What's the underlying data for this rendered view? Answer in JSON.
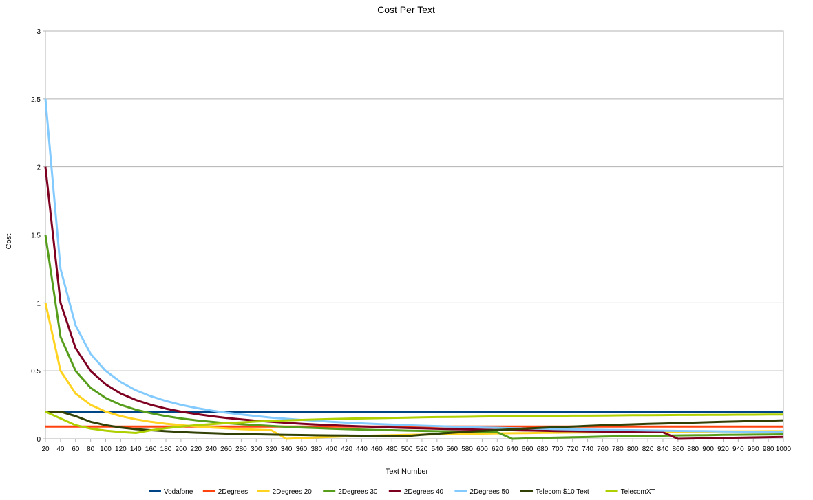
{
  "chart_data": {
    "type": "line",
    "title": "Cost Per Text",
    "xlabel": "Text Number",
    "ylabel": "Cost",
    "ylim": [
      0,
      3
    ],
    "yticks": [
      "0",
      "0.5",
      "1",
      "1.5",
      "2",
      "2.5",
      "3"
    ],
    "grid": true,
    "legend_position": "bottom",
    "x": [
      20,
      40,
      60,
      80,
      100,
      120,
      140,
      160,
      180,
      200,
      220,
      240,
      260,
      280,
      300,
      320,
      340,
      360,
      380,
      400,
      420,
      440,
      460,
      480,
      500,
      520,
      540,
      560,
      580,
      600,
      620,
      640,
      660,
      680,
      700,
      720,
      740,
      760,
      780,
      800,
      820,
      840,
      860,
      880,
      900,
      920,
      940,
      960,
      980,
      1000
    ],
    "series": [
      {
        "name": "Vodafone",
        "color": "#004586",
        "values": [
          0.2,
          0.2,
          0.2,
          0.2,
          0.2,
          0.2,
          0.2,
          0.2,
          0.2,
          0.2,
          0.2,
          0.2,
          0.2,
          0.2,
          0.2,
          0.2,
          0.2,
          0.2,
          0.2,
          0.2,
          0.2,
          0.2,
          0.2,
          0.2,
          0.2,
          0.2,
          0.2,
          0.2,
          0.2,
          0.2,
          0.2,
          0.2,
          0.2,
          0.2,
          0.2,
          0.2,
          0.2,
          0.2,
          0.2,
          0.2,
          0.2,
          0.2,
          0.2,
          0.2,
          0.2,
          0.2,
          0.2,
          0.2,
          0.2,
          0.2
        ]
      },
      {
        "name": "2Degrees",
        "color": "#ff420e",
        "values": [
          0.09,
          0.09,
          0.09,
          0.09,
          0.09,
          0.09,
          0.09,
          0.09,
          0.09,
          0.09,
          0.09,
          0.09,
          0.09,
          0.09,
          0.09,
          0.09,
          0.09,
          0.09,
          0.09,
          0.09,
          0.09,
          0.09,
          0.09,
          0.09,
          0.09,
          0.09,
          0.09,
          0.09,
          0.09,
          0.09,
          0.09,
          0.09,
          0.09,
          0.09,
          0.09,
          0.09,
          0.09,
          0.09,
          0.09,
          0.09,
          0.09,
          0.09,
          0.09,
          0.09,
          0.09,
          0.09,
          0.09,
          0.09,
          0.09,
          0.09
        ]
      },
      {
        "name": "2Degrees 20",
        "color": "#ffd320",
        "values": [
          1.0,
          0.5,
          0.333,
          0.25,
          0.2,
          0.167,
          0.143,
          0.125,
          0.111,
          0.1,
          0.091,
          0.083,
          0.077,
          0.071,
          0.067,
          0.063,
          0.0,
          0.005,
          0.01,
          0.014,
          0.018,
          0.021,
          0.024,
          0.027,
          0.029,
          0.031,
          0.033,
          0.035,
          0.037,
          0.038,
          0.04,
          0.041,
          0.042,
          0.044,
          0.045,
          0.046,
          0.047,
          0.048,
          0.049,
          0.05,
          0.05,
          0.051,
          0.052,
          0.053,
          0.053,
          0.054,
          0.055,
          0.055,
          0.056,
          0.056
        ]
      },
      {
        "name": "2Degrees 30",
        "color": "#579d1c",
        "values": [
          1.5,
          0.75,
          0.5,
          0.375,
          0.3,
          0.25,
          0.214,
          0.188,
          0.167,
          0.15,
          0.136,
          0.125,
          0.115,
          0.107,
          0.1,
          0.094,
          0.088,
          0.083,
          0.079,
          0.075,
          0.071,
          0.068,
          0.065,
          0.063,
          0.06,
          0.058,
          0.056,
          0.054,
          0.052,
          0.05,
          0.048,
          0.0,
          0.003,
          0.006,
          0.009,
          0.011,
          0.013,
          0.016,
          0.018,
          0.02,
          0.021,
          0.023,
          0.025,
          0.026,
          0.027,
          0.029,
          0.03,
          0.031,
          0.032,
          0.033
        ]
      },
      {
        "name": "2Degrees 40",
        "color": "#7e0021",
        "values": [
          2.0,
          1.0,
          0.667,
          0.5,
          0.4,
          0.333,
          0.286,
          0.25,
          0.222,
          0.2,
          0.182,
          0.167,
          0.154,
          0.143,
          0.133,
          0.125,
          0.118,
          0.111,
          0.105,
          0.1,
          0.095,
          0.091,
          0.087,
          0.083,
          0.08,
          0.077,
          0.074,
          0.071,
          0.069,
          0.067,
          0.065,
          0.063,
          0.061,
          0.059,
          0.057,
          0.056,
          0.054,
          0.053,
          0.051,
          0.05,
          0.049,
          0.048,
          0.0,
          0.002,
          0.004,
          0.006,
          0.008,
          0.01,
          0.012,
          0.014
        ]
      },
      {
        "name": "2Degrees 50",
        "color": "#83caff",
        "values": [
          2.5,
          1.25,
          0.833,
          0.625,
          0.5,
          0.417,
          0.357,
          0.313,
          0.278,
          0.25,
          0.227,
          0.208,
          0.192,
          0.179,
          0.167,
          0.156,
          0.147,
          0.139,
          0.132,
          0.125,
          0.119,
          0.114,
          0.109,
          0.104,
          0.1,
          0.096,
          0.093,
          0.089,
          0.086,
          0.083,
          0.081,
          0.078,
          0.076,
          0.074,
          0.071,
          0.069,
          0.068,
          0.066,
          0.064,
          0.063,
          0.061,
          0.06,
          0.058,
          0.057,
          0.056,
          0.054,
          0.053,
          0.052,
          0.051,
          0.05
        ]
      },
      {
        "name": "Telecom $10 Text",
        "color": "#314004",
        "values": [
          0.2,
          0.2,
          0.167,
          0.125,
          0.1,
          0.083,
          0.071,
          0.063,
          0.056,
          0.05,
          0.045,
          0.042,
          0.038,
          0.036,
          0.033,
          0.031,
          0.029,
          0.028,
          0.026,
          0.025,
          0.024,
          0.023,
          0.022,
          0.021,
          0.02,
          0.029,
          0.037,
          0.045,
          0.052,
          0.058,
          0.065,
          0.07,
          0.076,
          0.081,
          0.086,
          0.09,
          0.095,
          0.099,
          0.103,
          0.106,
          0.11,
          0.113,
          0.116,
          0.119,
          0.122,
          0.125,
          0.128,
          0.131,
          0.133,
          0.136
        ]
      },
      {
        "name": "TelecomXT",
        "color": "#aecf00",
        "values": [
          0.2,
          0.15,
          0.1,
          0.075,
          0.06,
          0.05,
          0.043,
          0.0625,
          0.078,
          0.09,
          0.1,
          0.108,
          0.115,
          0.121,
          0.127,
          0.131,
          0.135,
          0.139,
          0.142,
          0.145,
          0.148,
          0.15,
          0.152,
          0.154,
          0.156,
          0.158,
          0.16,
          0.161,
          0.162,
          0.164,
          0.165,
          0.166,
          0.167,
          0.168,
          0.169,
          0.17,
          0.17,
          0.171,
          0.172,
          0.173,
          0.173,
          0.174,
          0.175,
          0.175,
          0.176,
          0.176,
          0.177,
          0.177,
          0.178,
          0.178
        ]
      }
    ]
  }
}
